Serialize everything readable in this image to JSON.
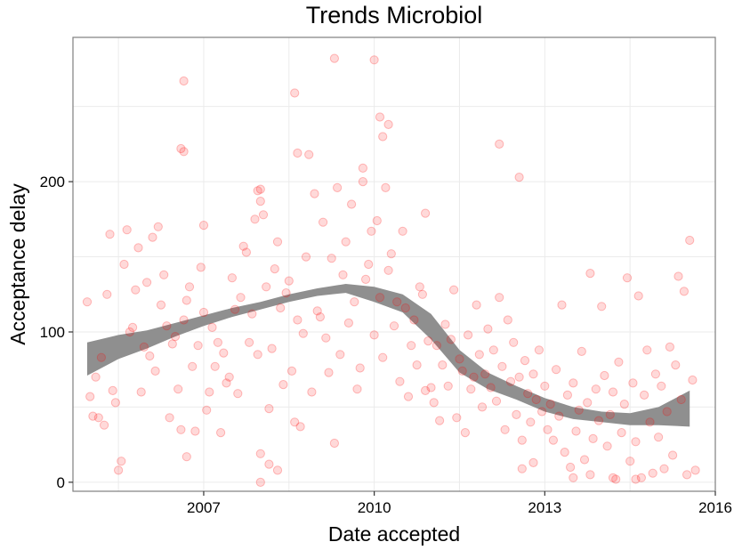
{
  "chart_data": {
    "type": "scatter",
    "title": "Trends Microbiol",
    "xlabel": "Date accepted",
    "ylabel": "Acceptance delay",
    "xlim": [
      2004.7,
      2016.0
    ],
    "ylim": [
      -6,
      296
    ],
    "x_ticks": [
      2007,
      2010,
      2013,
      2016
    ],
    "y_ticks": [
      0,
      100,
      200
    ],
    "grid": true,
    "colors": {
      "points": "#ff0000",
      "smooth_band": "#8f8f8f",
      "panel_border": "#7f7f7f",
      "grid": "#ebebeb"
    },
    "points": [
      [
        2004.95,
        120
      ],
      [
        2005.0,
        57
      ],
      [
        2005.05,
        44
      ],
      [
        2005.1,
        70
      ],
      [
        2005.15,
        43
      ],
      [
        2005.2,
        83
      ],
      [
        2005.25,
        38
      ],
      [
        2005.3,
        125
      ],
      [
        2005.35,
        165
      ],
      [
        2005.4,
        61
      ],
      [
        2005.45,
        53
      ],
      [
        2005.5,
        8
      ],
      [
        2005.55,
        14
      ],
      [
        2005.6,
        145
      ],
      [
        2005.65,
        168
      ],
      [
        2005.7,
        100
      ],
      [
        2005.75,
        103
      ],
      [
        2005.8,
        128
      ],
      [
        2005.85,
        156
      ],
      [
        2005.9,
        60
      ],
      [
        2005.95,
        90
      ],
      [
        2006.0,
        133
      ],
      [
        2006.05,
        84
      ],
      [
        2006.1,
        163
      ],
      [
        2006.15,
        74
      ],
      [
        2006.2,
        170
      ],
      [
        2006.25,
        118
      ],
      [
        2006.3,
        138
      ],
      [
        2006.35,
        104
      ],
      [
        2006.4,
        43
      ],
      [
        2006.45,
        92
      ],
      [
        2006.5,
        97
      ],
      [
        2006.55,
        62
      ],
      [
        2006.6,
        35
      ],
      [
        2006.65,
        108
      ],
      [
        2006.7,
        121
      ],
      [
        2006.75,
        130
      ],
      [
        2006.8,
        77
      ],
      [
        2006.85,
        34
      ],
      [
        2006.9,
        91
      ],
      [
        2006.95,
        143
      ],
      [
        2007.0,
        113
      ],
      [
        2006.6,
        222
      ],
      [
        2006.65,
        220
      ],
      [
        2006.65,
        267
      ],
      [
        2006.7,
        17
      ],
      [
        2007.0,
        171
      ],
      [
        2007.05,
        48
      ],
      [
        2007.1,
        60
      ],
      [
        2007.15,
        103
      ],
      [
        2007.2,
        77
      ],
      [
        2007.25,
        93
      ],
      [
        2007.3,
        33
      ],
      [
        2007.35,
        86
      ],
      [
        2007.4,
        66
      ],
      [
        2007.45,
        70
      ],
      [
        2007.5,
        136
      ],
      [
        2007.55,
        115
      ],
      [
        2007.6,
        59
      ],
      [
        2007.65,
        123
      ],
      [
        2007.7,
        157
      ],
      [
        2007.75,
        153
      ],
      [
        2007.8,
        93
      ],
      [
        2007.85,
        112
      ],
      [
        2007.9,
        175
      ],
      [
        2007.95,
        85
      ],
      [
        2007.95,
        194
      ],
      [
        2008.0,
        187
      ],
      [
        2008.0,
        195
      ],
      [
        2008.05,
        178
      ],
      [
        2008.1,
        130
      ],
      [
        2008.15,
        49
      ],
      [
        2008.2,
        89
      ],
      [
        2008.25,
        142
      ],
      [
        2008.3,
        160
      ],
      [
        2008.35,
        116
      ],
      [
        2008.4,
        65
      ],
      [
        2008.45,
        126
      ],
      [
        2008.5,
        134
      ],
      [
        2008.55,
        74
      ],
      [
        2008.6,
        40
      ],
      [
        2008.65,
        108
      ],
      [
        2008.7,
        37
      ],
      [
        2008.75,
        99
      ],
      [
        2008.8,
        150
      ],
      [
        2008.85,
        218
      ],
      [
        2008.9,
        60
      ],
      [
        2008.95,
        192
      ],
      [
        2009.0,
        114
      ],
      [
        2008.0,
        0
      ],
      [
        2008.0,
        19
      ],
      [
        2008.15,
        12
      ],
      [
        2008.3,
        8
      ],
      [
        2008.6,
        259
      ],
      [
        2008.65,
        219
      ],
      [
        2009.05,
        110
      ],
      [
        2009.1,
        173
      ],
      [
        2009.15,
        96
      ],
      [
        2009.2,
        73
      ],
      [
        2009.25,
        149
      ],
      [
        2009.3,
        26
      ],
      [
        2009.35,
        196
      ],
      [
        2009.4,
        85
      ],
      [
        2009.45,
        138
      ],
      [
        2009.5,
        160
      ],
      [
        2009.55,
        106
      ],
      [
        2009.6,
        185
      ],
      [
        2009.65,
        120
      ],
      [
        2009.7,
        62
      ],
      [
        2009.75,
        76
      ],
      [
        2009.8,
        200
      ],
      [
        2009.85,
        135
      ],
      [
        2009.9,
        145
      ],
      [
        2009.95,
        167
      ],
      [
        2010.0,
        98
      ],
      [
        2009.3,
        282
      ],
      [
        2009.8,
        209
      ],
      [
        2010.0,
        281
      ],
      [
        2010.05,
        174
      ],
      [
        2010.1,
        123
      ],
      [
        2010.15,
        83
      ],
      [
        2010.2,
        196
      ],
      [
        2010.25,
        141
      ],
      [
        2010.3,
        152
      ],
      [
        2010.35,
        104
      ],
      [
        2010.4,
        120
      ],
      [
        2010.45,
        67
      ],
      [
        2010.5,
        167
      ],
      [
        2010.55,
        116
      ],
      [
        2010.6,
        57
      ],
      [
        2010.65,
        91
      ],
      [
        2010.7,
        108
      ],
      [
        2010.75,
        78
      ],
      [
        2010.8,
        130
      ],
      [
        2010.85,
        125
      ],
      [
        2010.9,
        61
      ],
      [
        2010.95,
        94
      ],
      [
        2011.0,
        63
      ],
      [
        2010.1,
        243
      ],
      [
        2010.15,
        230
      ],
      [
        2010.25,
        238
      ],
      [
        2010.9,
        179
      ],
      [
        2011.05,
        53
      ],
      [
        2011.1,
        91
      ],
      [
        2011.15,
        41
      ],
      [
        2011.2,
        78
      ],
      [
        2011.25,
        105
      ],
      [
        2011.3,
        64
      ],
      [
        2011.35,
        95
      ],
      [
        2011.4,
        128
      ],
      [
        2011.45,
        43
      ],
      [
        2011.5,
        82
      ],
      [
        2011.55,
        74
      ],
      [
        2011.6,
        33
      ],
      [
        2011.65,
        98
      ],
      [
        2011.7,
        62
      ],
      [
        2011.75,
        70
      ],
      [
        2011.8,
        118
      ],
      [
        2011.85,
        85
      ],
      [
        2011.9,
        50
      ],
      [
        2011.95,
        72
      ],
      [
        2012.0,
        102
      ],
      [
        2012.05,
        63
      ],
      [
        2012.1,
        88
      ],
      [
        2012.15,
        54
      ],
      [
        2012.2,
        123
      ],
      [
        2012.25,
        77
      ],
      [
        2012.3,
        35
      ],
      [
        2012.35,
        108
      ],
      [
        2012.4,
        67
      ],
      [
        2012.45,
        93
      ],
      [
        2012.5,
        45
      ],
      [
        2012.55,
        70
      ],
      [
        2012.6,
        28
      ],
      [
        2012.65,
        81
      ],
      [
        2012.7,
        59
      ],
      [
        2012.75,
        40
      ],
      [
        2012.8,
        72
      ],
      [
        2012.85,
        55
      ],
      [
        2012.9,
        88
      ],
      [
        2012.95,
        47
      ],
      [
        2013.0,
        64
      ],
      [
        2012.2,
        225
      ],
      [
        2012.55,
        203
      ],
      [
        2012.6,
        9
      ],
      [
        2012.8,
        13
      ],
      [
        2013.05,
        35
      ],
      [
        2013.1,
        52
      ],
      [
        2013.15,
        28
      ],
      [
        2013.2,
        75
      ],
      [
        2013.25,
        44
      ],
      [
        2013.3,
        118
      ],
      [
        2013.35,
        20
      ],
      [
        2013.4,
        58
      ],
      [
        2013.45,
        10
      ],
      [
        2013.5,
        66
      ],
      [
        2013.55,
        34
      ],
      [
        2013.6,
        48
      ],
      [
        2013.65,
        87
      ],
      [
        2013.7,
        15
      ],
      [
        2013.75,
        53
      ],
      [
        2013.8,
        139
      ],
      [
        2013.85,
        29
      ],
      [
        2013.9,
        62
      ],
      [
        2013.95,
        41
      ],
      [
        2014.0,
        117
      ],
      [
        2013.5,
        3
      ],
      [
        2013.8,
        5
      ],
      [
        2014.05,
        71
      ],
      [
        2014.1,
        24
      ],
      [
        2014.15,
        45
      ],
      [
        2014.2,
        60
      ],
      [
        2014.25,
        2
      ],
      [
        2014.3,
        80
      ],
      [
        2014.35,
        33
      ],
      [
        2014.4,
        52
      ],
      [
        2014.45,
        136
      ],
      [
        2014.5,
        14
      ],
      [
        2014.55,
        66
      ],
      [
        2014.6,
        27
      ],
      [
        2014.65,
        124
      ],
      [
        2014.7,
        3
      ],
      [
        2014.75,
        58
      ],
      [
        2014.8,
        88
      ],
      [
        2014.85,
        40
      ],
      [
        2014.9,
        6
      ],
      [
        2014.95,
        72
      ],
      [
        2015.0,
        30
      ],
      [
        2014.2,
        3
      ],
      [
        2014.6,
        2
      ],
      [
        2015.05,
        64
      ],
      [
        2015.1,
        9
      ],
      [
        2015.15,
        47
      ],
      [
        2015.2,
        90
      ],
      [
        2015.25,
        18
      ],
      [
        2015.3,
        78
      ],
      [
        2015.35,
        137
      ],
      [
        2015.4,
        55
      ],
      [
        2015.45,
        127
      ],
      [
        2015.5,
        5
      ],
      [
        2015.55,
        161
      ],
      [
        2015.6,
        68
      ],
      [
        2015.65,
        8
      ]
    ],
    "smooth": {
      "x": [
        2004.95,
        2005.5,
        2006.0,
        2006.5,
        2007.0,
        2007.5,
        2008.0,
        2008.5,
        2009.0,
        2009.5,
        2010.0,
        2010.5,
        2011.0,
        2011.5,
        2012.0,
        2012.5,
        2013.0,
        2013.5,
        2014.0,
        2014.5,
        2015.0,
        2015.55
      ],
      "lower": [
        71,
        82,
        89,
        97,
        104,
        110,
        115,
        120,
        124,
        126,
        120,
        113,
        95,
        73,
        62,
        55,
        47,
        42,
        40,
        38,
        38,
        37
      ],
      "upper": [
        93,
        98,
        101,
        106,
        111,
        116,
        120,
        125,
        129,
        132,
        130,
        125,
        112,
        88,
        73,
        64,
        56,
        50,
        47,
        46,
        50,
        61
      ]
    }
  }
}
